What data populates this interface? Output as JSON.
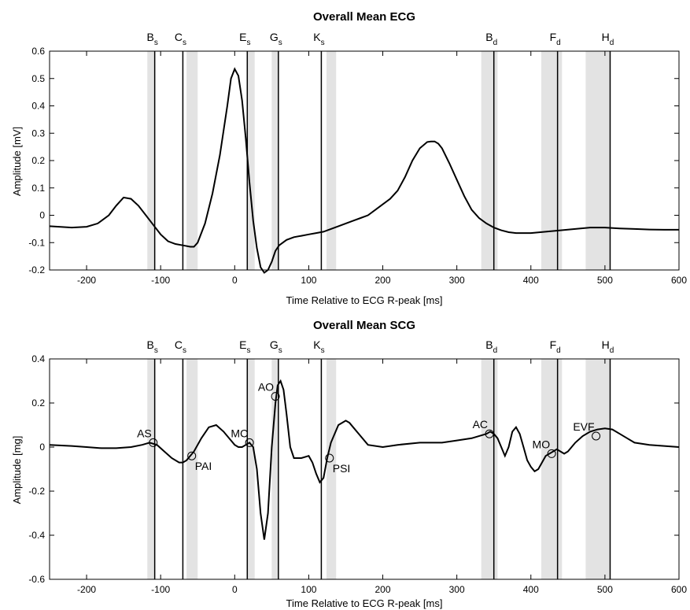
{
  "chart_data": [
    {
      "type": "line",
      "title": "Overall Mean ECG",
      "xlabel": "Time Relative to ECG R-peak [ms]",
      "ylabel": "Amplitude [mV]",
      "xlim": [
        -250,
        600
      ],
      "ylim": [
        -0.2,
        0.6
      ],
      "xticks": [
        -200,
        -100,
        0,
        100,
        200,
        300,
        400,
        500,
        600
      ],
      "yticks": [
        -0.2,
        -0.1,
        0,
        0.1,
        0.2,
        0.3,
        0.4,
        0.5,
        0.6
      ],
      "grid": false,
      "series": [
        {
          "x": [
            -250,
            -220,
            -200,
            -185,
            -170,
            -160,
            -150,
            -140,
            -130,
            -120,
            -110,
            -100,
            -90,
            -80,
            -70,
            -60,
            -55,
            -50,
            -40,
            -30,
            -20,
            -10,
            -5,
            0,
            5,
            10,
            15,
            20,
            25,
            30,
            35,
            40,
            45,
            50,
            55,
            60,
            70,
            80,
            90,
            100,
            110,
            120,
            130,
            140,
            150,
            160,
            170,
            180,
            190,
            200,
            210,
            220,
            230,
            240,
            250,
            260,
            265,
            270,
            275,
            280,
            290,
            300,
            310,
            320,
            330,
            340,
            350,
            360,
            370,
            380,
            400,
            420,
            440,
            460,
            480,
            500,
            520,
            540,
            560,
            580,
            600
          ],
          "y": [
            -0.04,
            -0.045,
            -0.042,
            -0.03,
            0.0,
            0.035,
            0.065,
            0.06,
            0.035,
            0.0,
            -0.035,
            -0.07,
            -0.095,
            -0.105,
            -0.11,
            -0.115,
            -0.115,
            -0.1,
            -0.03,
            0.08,
            0.22,
            0.4,
            0.5,
            0.535,
            0.51,
            0.42,
            0.28,
            0.12,
            -0.02,
            -0.12,
            -0.19,
            -0.21,
            -0.2,
            -0.17,
            -0.13,
            -0.11,
            -0.09,
            -0.08,
            -0.075,
            -0.07,
            -0.065,
            -0.06,
            -0.05,
            -0.04,
            -0.03,
            -0.02,
            -0.01,
            0.0,
            0.02,
            0.04,
            0.06,
            0.09,
            0.14,
            0.2,
            0.245,
            0.268,
            0.27,
            0.27,
            0.262,
            0.245,
            0.19,
            0.13,
            0.07,
            0.02,
            -0.01,
            -0.03,
            -0.045,
            -0.055,
            -0.062,
            -0.065,
            -0.065,
            -0.06,
            -0.055,
            -0.05,
            -0.045,
            -0.045,
            -0.048,
            -0.05,
            -0.052,
            -0.053,
            -0.053
          ]
        }
      ]
    },
    {
      "type": "line",
      "title": "Overall Mean SCG",
      "xlabel": "Time Relative to ECG R-peak [ms]",
      "ylabel": "Amplitude [mg]",
      "xlim": [
        -250,
        600
      ],
      "ylim": [
        -0.6,
        0.4
      ],
      "xticks": [
        -200,
        -100,
        0,
        100,
        200,
        300,
        400,
        500,
        600
      ],
      "yticks": [
        -0.6,
        -0.4,
        -0.2,
        0,
        0.2,
        0.4
      ],
      "grid": false,
      "series": [
        {
          "x": [
            -250,
            -220,
            -200,
            -180,
            -160,
            -140,
            -125,
            -115,
            -105,
            -95,
            -85,
            -75,
            -70,
            -65,
            -55,
            -45,
            -35,
            -25,
            -15,
            -5,
            0,
            5,
            10,
            15,
            20,
            25,
            30,
            35,
            40,
            45,
            50,
            55,
            58,
            62,
            66,
            70,
            75,
            80,
            90,
            100,
            105,
            110,
            115,
            120,
            125,
            130,
            140,
            150,
            155,
            160,
            170,
            180,
            200,
            220,
            250,
            280,
            300,
            320,
            340,
            345,
            350,
            355,
            360,
            365,
            370,
            375,
            380,
            385,
            390,
            395,
            400,
            405,
            410,
            415,
            420,
            425,
            430,
            435,
            440,
            445,
            450,
            460,
            470,
            480,
            490,
            500,
            510,
            520,
            530,
            540,
            560,
            580,
            600
          ],
          "y": [
            0.01,
            0.005,
            0.0,
            -0.005,
            -0.005,
            0.0,
            0.01,
            0.02,
            0.01,
            -0.02,
            -0.05,
            -0.07,
            -0.07,
            -0.06,
            -0.02,
            0.04,
            0.09,
            0.1,
            0.07,
            0.03,
            0.01,
            0.0,
            0.0,
            0.01,
            0.02,
            0.0,
            -0.1,
            -0.3,
            -0.42,
            -0.3,
            0.0,
            0.2,
            0.28,
            0.3,
            0.26,
            0.15,
            0.0,
            -0.05,
            -0.05,
            -0.04,
            -0.07,
            -0.12,
            -0.16,
            -0.14,
            -0.05,
            0.02,
            0.1,
            0.12,
            0.11,
            0.09,
            0.05,
            0.01,
            0.0,
            0.01,
            0.02,
            0.02,
            0.03,
            0.04,
            0.06,
            0.07,
            0.06,
            0.04,
            0.0,
            -0.04,
            0.0,
            0.07,
            0.09,
            0.06,
            0.0,
            -0.06,
            -0.09,
            -0.11,
            -0.1,
            -0.07,
            -0.04,
            -0.03,
            -0.02,
            -0.01,
            -0.02,
            -0.03,
            -0.02,
            0.02,
            0.05,
            0.07,
            0.08,
            0.085,
            0.08,
            0.06,
            0.04,
            0.02,
            0.01,
            0.005,
            0.0
          ]
        }
      ],
      "annotations": [
        {
          "label": "AS",
          "x": -110,
          "y": 0.02
        },
        {
          "label": "PAI",
          "x": -58,
          "y": -0.04
        },
        {
          "label": "MC",
          "x": 20,
          "y": 0.02
        },
        {
          "label": "AO",
          "x": 55,
          "y": 0.23
        },
        {
          "label": "PSI",
          "x": 128,
          "y": -0.05
        },
        {
          "label": "AC",
          "x": 344,
          "y": 0.06
        },
        {
          "label": "MO",
          "x": 428,
          "y": -0.03
        },
        {
          "label": "EVF",
          "x": 488,
          "y": 0.05
        }
      ]
    }
  ],
  "events": [
    {
      "letter": "B",
      "sub": "s",
      "x": -108
    },
    {
      "letter": "C",
      "sub": "s",
      "x": -70
    },
    {
      "letter": "E",
      "sub": "s",
      "x": 17
    },
    {
      "letter": "G",
      "sub": "s",
      "x": 59
    },
    {
      "letter": "K",
      "sub": "s",
      "x": 117
    },
    {
      "letter": "B",
      "sub": "d",
      "x": 350
    },
    {
      "letter": "F",
      "sub": "d",
      "x": 436
    },
    {
      "letter": "H",
      "sub": "d",
      "x": 507
    }
  ],
  "shaded_bands": [
    {
      "x0": -118,
      "x1": -108
    },
    {
      "x0": -65,
      "x1": -50
    },
    {
      "x0": 17,
      "x1": 27
    },
    {
      "x0": 50,
      "x1": 59
    },
    {
      "x0": 124,
      "x1": 137
    },
    {
      "x0": 333,
      "x1": 355
    },
    {
      "x0": 414,
      "x1": 442
    },
    {
      "x0": 474,
      "x1": 507
    }
  ],
  "colors": {
    "line": "#000000",
    "band": "#e3e3e3",
    "axis": "#000000"
  }
}
